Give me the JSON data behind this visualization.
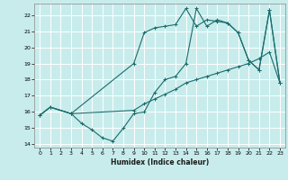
{
  "xlabel": "Humidex (Indice chaleur)",
  "xlim": [
    -0.5,
    23.5
  ],
  "ylim": [
    13.8,
    22.7
  ],
  "yticks": [
    14,
    15,
    16,
    17,
    18,
    19,
    20,
    21,
    22
  ],
  "xticks": [
    0,
    1,
    2,
    3,
    4,
    5,
    6,
    7,
    8,
    9,
    10,
    11,
    12,
    13,
    14,
    15,
    16,
    17,
    18,
    19,
    20,
    21,
    22,
    23
  ],
  "bg_color": "#c8ecec",
  "grid_color": "#ffffff",
  "line_color": "#1a6b6b",
  "line1_x": [
    0,
    1,
    3,
    4,
    5,
    6,
    7,
    8,
    9,
    10,
    11,
    12,
    13,
    14,
    15,
    16,
    17,
    18,
    19,
    20,
    21,
    22,
    23
  ],
  "line1_y": [
    15.8,
    16.3,
    15.9,
    15.3,
    14.9,
    14.4,
    14.2,
    15.0,
    15.9,
    16.0,
    17.2,
    18.0,
    18.2,
    19.0,
    22.4,
    21.3,
    21.7,
    21.5,
    20.9,
    19.2,
    18.6,
    22.3,
    17.8
  ],
  "line2_x": [
    0,
    1,
    3,
    9,
    10,
    11,
    12,
    13,
    14,
    15,
    16,
    17,
    18,
    19,
    20,
    21,
    22,
    23
  ],
  "line2_y": [
    15.8,
    16.3,
    15.9,
    19.0,
    20.9,
    21.2,
    21.3,
    21.4,
    22.4,
    21.3,
    21.7,
    21.6,
    21.5,
    20.9,
    19.2,
    18.6,
    22.3,
    17.8
  ],
  "line3_x": [
    0,
    1,
    3,
    9,
    10,
    11,
    12,
    13,
    14,
    15,
    16,
    17,
    18,
    19,
    20,
    21,
    22,
    23
  ],
  "line3_y": [
    15.8,
    16.3,
    15.9,
    16.1,
    16.5,
    16.8,
    17.1,
    17.4,
    17.8,
    18.0,
    18.2,
    18.4,
    18.6,
    18.8,
    19.0,
    19.3,
    19.7,
    17.8
  ],
  "figsize": [
    3.2,
    2.0
  ],
  "dpi": 100
}
